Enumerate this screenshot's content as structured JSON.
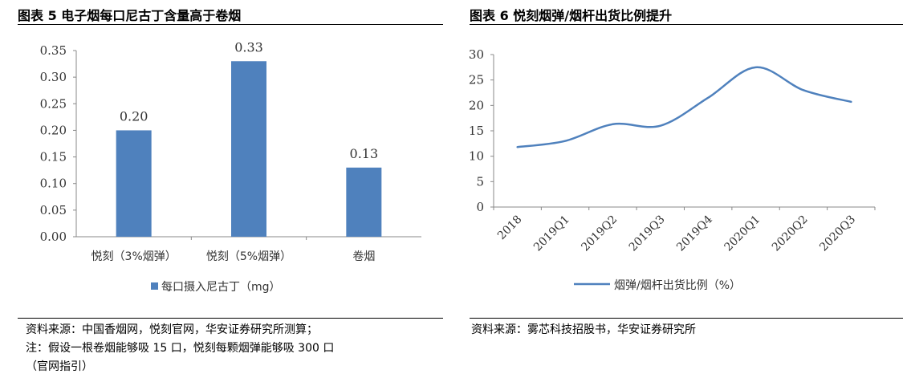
{
  "left": {
    "title": "图表 5 电子烟每口尼古丁含量高于卷烟",
    "source": "资料来源：中国香烟网，悦刻官网，华安证券研究所测算；",
    "note1": "注：假设一根卷烟能够吸 15 口，悦刻每颗烟弹能够吸 300 口",
    "note2": "（官网指引）"
  },
  "right": {
    "title": "图表 6 悦刻烟弹/烟杆出货比例提升",
    "source": "资料来源：雾芯科技招股书，华安证券研究所"
  },
  "chart_data": [
    {
      "type": "bar",
      "categories": [
        "悦刻（3%烟弹）",
        "悦刻（5%烟弹）",
        "卷烟"
      ],
      "series": [
        {
          "name": "每口摄入尼古丁（mg）",
          "values": [
            0.2,
            0.33,
            0.13
          ]
        }
      ],
      "data_labels": [
        "0.20",
        "0.33",
        "0.13"
      ],
      "ylim": [
        0,
        0.35
      ],
      "yticks": [
        "0.00",
        "0.05",
        "0.10",
        "0.15",
        "0.20",
        "0.25",
        "0.30",
        "0.35"
      ],
      "color": "#4f81bd",
      "legend": "bottom"
    },
    {
      "type": "line",
      "categories": [
        "2018",
        "2019Q1",
        "2019Q2",
        "2019Q3",
        "2019Q4",
        "2020Q1",
        "2020Q2",
        "2020Q3"
      ],
      "series": [
        {
          "name": "烟弹/烟杆出货比例（%）",
          "values": [
            11.8,
            13.0,
            16.3,
            16.0,
            21.5,
            27.5,
            23.0,
            20.7
          ]
        }
      ],
      "ylim": [
        0,
        30
      ],
      "yticks": [
        "0",
        "5",
        "10",
        "15",
        "20",
        "25",
        "30"
      ],
      "color": "#4f81bd",
      "legend": "bottom"
    }
  ]
}
